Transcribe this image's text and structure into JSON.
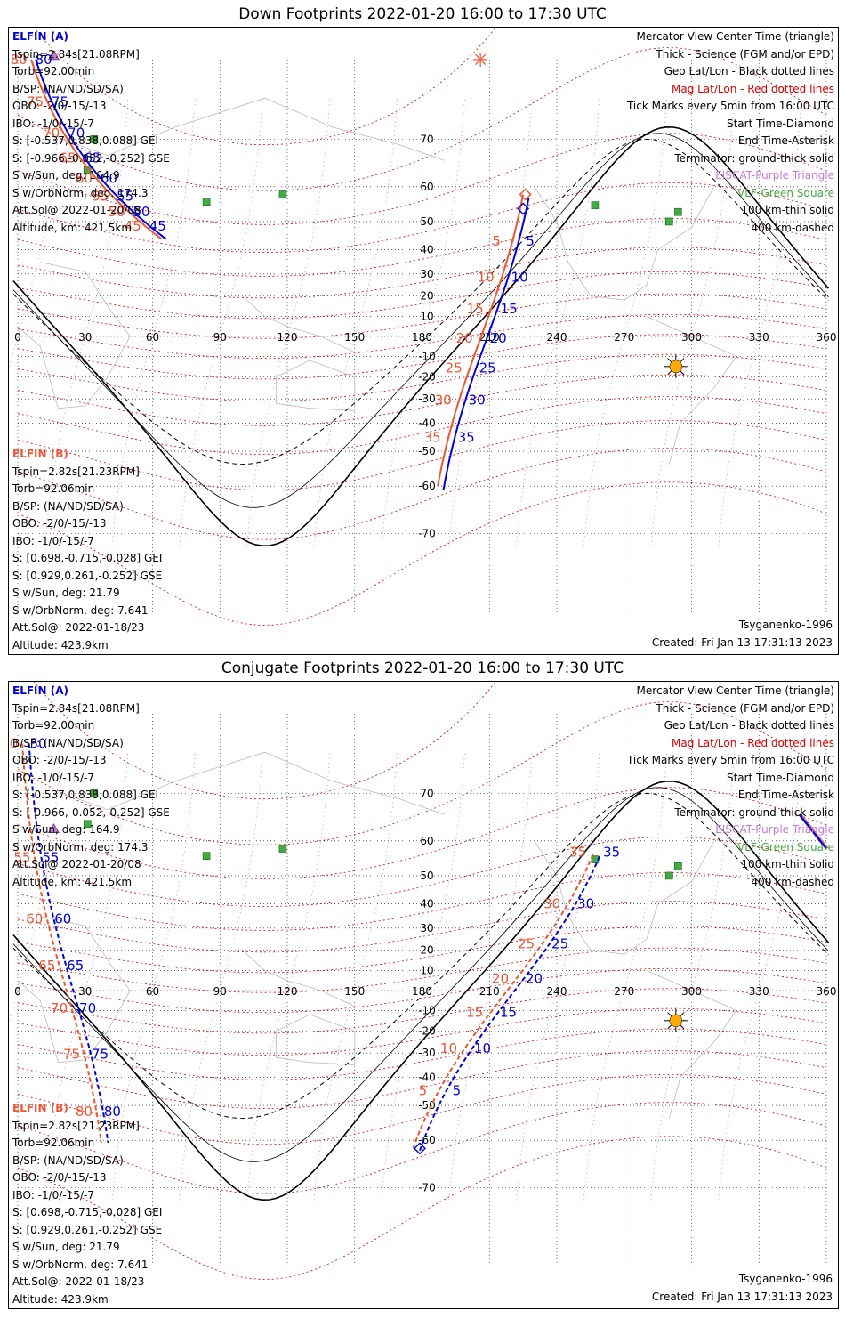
{
  "panels": [
    {
      "title": "Down Footprints 2022-01-20 16:00 to 17:30 UTC",
      "track_a_labels": [
        "80",
        "75",
        "70",
        "65",
        "60",
        "55",
        "50",
        "45"
      ],
      "track_b_labels": [
        "80",
        "75",
        "70",
        "65",
        "60",
        "55",
        "50",
        "45"
      ],
      "track_a2_labels": [
        "5",
        "10",
        "15",
        "20",
        "25",
        "30",
        "35"
      ],
      "track_b2_labels": [
        "5",
        "10",
        "15",
        "20",
        "25",
        "30",
        "35"
      ]
    },
    {
      "title": "Conjugate Footprints 2022-01-20 16:00 to 17:30 UTC",
      "track_a_labels": [
        "50",
        "55",
        "60",
        "65",
        "70",
        "75",
        "80"
      ],
      "track_b_labels": [
        "50",
        "55",
        "60",
        "65",
        "70",
        "75",
        "80"
      ],
      "track_a2_labels": [
        "5",
        "10",
        "15",
        "20",
        "25",
        "30",
        "35"
      ],
      "track_b2_labels": [
        "5",
        "10",
        "15",
        "20",
        "25",
        "30",
        "35"
      ]
    }
  ],
  "elfin_a": {
    "name": "ELFIN (A)",
    "lines": [
      "Tspin=2.84s[21.08RPM]",
      "Torb=92.00min",
      "B/SP: (NA/ND/SD/SA)",
      "OBO: -2/0/-15/-13",
      "IBO: -1/0/-15/-7",
      "S: [-0.537,0.838,0.088] GEI",
      "S: [-0.966,-0.052,-0.252] GSE",
      "S w/Sun, deg: 164.9",
      "S w/OrbNorm, deg: 174.3",
      "Att.Sol@:2022-01-20/08",
      "Altitude, km: 421.5km"
    ]
  },
  "elfin_b": {
    "name": "ELFIN (B)",
    "lines": [
      "Tspin=2.82s[21.23RPM]",
      "Torb=92.06min",
      "B/SP: (NA/ND/SD/SA)",
      "OBO: -2/0/-15/-13",
      "IBO: -1/0/-15/-7",
      "S: [0.698,-0.715,-0.028] GEI",
      "S: [0.929,0.261,-0.252] GSE",
      "S w/Sun, deg: 21.79",
      "S w/OrbNorm, deg: 7.641",
      "Att.Sol@: 2022-01-18/23",
      "Altitude: 423.9km"
    ]
  },
  "legend": [
    {
      "text": "Mercator View Center Time (triangle)",
      "color": "#000000"
    },
    {
      "text": "Thick - Science (FGM and/or EPD)",
      "color": "#000000"
    },
    {
      "text": "Geo Lat/Lon - Black dotted lines",
      "color": "#000000"
    },
    {
      "text": "Mag Lat/Lon - Red dotted lines",
      "color": "#dd0000"
    },
    {
      "text": "Tick Marks every 5min from 16:00 UTC",
      "color": "#000000"
    },
    {
      "text": "Start Time-Diamond",
      "color": "#000000"
    },
    {
      "text": "End Time-Asterisk",
      "color": "#000000"
    },
    {
      "text": "Terminator: ground-thick solid",
      "color": "#000000"
    },
    {
      "text": "EISCAT-Purple Triangle",
      "color": "#cc77dd"
    },
    {
      "text": "VLF-Green Square",
      "color": "#44aa44"
    },
    {
      "text": "100 km-thin solid",
      "color": "#000000"
    },
    {
      "text": "400 km-dashed",
      "color": "#000000"
    }
  ],
  "model": "Tsyganenko-1996",
  "created": "Created: Fri Jan 13 17:31:13 2023",
  "map": {
    "lon_ticks": [
      "0",
      "30",
      "60",
      "90",
      "120",
      "150",
      "180",
      "210",
      "240",
      "270",
      "300",
      "330",
      "360"
    ],
    "lat_ticks": [
      "70",
      "60",
      "50",
      "40",
      "30",
      "20",
      "10",
      "-10",
      "-20",
      "-30",
      "-40",
      "-50",
      "-60",
      "-70"
    ],
    "lat_values": [
      70,
      60,
      50,
      40,
      30,
      20,
      10,
      -10,
      -20,
      -30,
      -40,
      -50,
      -60,
      -70
    ],
    "lat_max": 80,
    "colors": {
      "elfin_a": "#0000dd",
      "elfin_b": "#ee5533",
      "geo_grid": "#000000",
      "mag_grid": "#dd0000",
      "terminator": "#000000",
      "eiscat": "#cc77dd",
      "vlf": "#44aa44",
      "sun": "#ffaa00"
    }
  }
}
